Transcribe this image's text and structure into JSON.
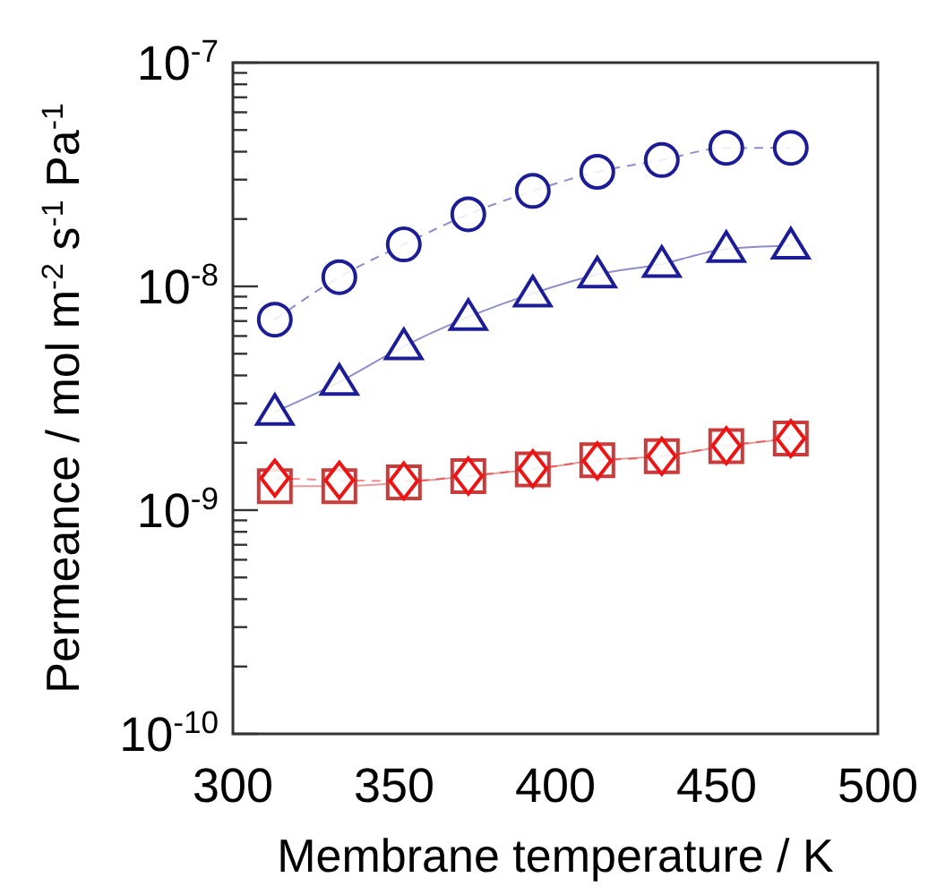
{
  "chart_data": {
    "type": "line",
    "xlabel": "Membrane temperature / K",
    "ylabel": "Permeance / mol m$^{-2}$ s$^{-1}$ Pa$^{-1}$",
    "log": "y",
    "grid": false,
    "x": [
      313,
      333,
      353,
      373,
      393,
      413,
      433,
      453,
      473
    ],
    "xlim": [
      300,
      500
    ],
    "xticks": [
      300,
      350,
      400,
      450,
      500
    ],
    "ylim": [
      1e-10,
      1e-07
    ],
    "yticks": [
      {
        "value": 1e-10,
        "label": "10$^{-10}$"
      },
      {
        "value": 2e-10,
        "label": null
      },
      {
        "value": 3e-10,
        "label": null
      },
      {
        "value": 4e-10,
        "label": null
      },
      {
        "value": 5e-10,
        "label": null
      },
      {
        "value": 6e-10,
        "label": null
      },
      {
        "value": 7e-10,
        "label": null
      },
      {
        "value": 8e-10,
        "label": null
      },
      {
        "value": 9e-10,
        "label": null
      },
      {
        "value": 1e-09,
        "label": "10$^{-9}$"
      },
      {
        "value": 2e-09,
        "label": null
      },
      {
        "value": 3e-09,
        "label": null
      },
      {
        "value": 4e-09,
        "label": null
      },
      {
        "value": 5e-09,
        "label": null
      },
      {
        "value": 6e-09,
        "label": null
      },
      {
        "value": 7e-09,
        "label": null
      },
      {
        "value": 8e-09,
        "label": null
      },
      {
        "value": 9e-09,
        "label": null
      },
      {
        "value": 1e-08,
        "label": "10$^{-8}$"
      },
      {
        "value": 2e-08,
        "label": null
      },
      {
        "value": 3e-08,
        "label": null
      },
      {
        "value": 4e-08,
        "label": null
      },
      {
        "value": 5e-08,
        "label": null
      },
      {
        "value": 6e-08,
        "label": null
      },
      {
        "value": 7e-08,
        "label": null
      },
      {
        "value": 8e-08,
        "label": null
      },
      {
        "value": 9e-08,
        "label": null
      },
      {
        "value": 1e-07,
        "label": "10$^{-7}$"
      }
    ],
    "series": [
      {
        "color": "#1c1c96",
        "marker": "circle",
        "line_style": "dashed",
        "values": [
          7.1e-09,
          1.1e-08,
          1.54e-08,
          2.1e-08,
          2.67e-08,
          3.25e-08,
          3.67e-08,
          4.16e-08,
          4.16e-08
        ]
      },
      {
        "color": "#1c1c96",
        "marker": "triangle",
        "line_style": "solid",
        "values": [
          2.75e-09,
          3.74e-09,
          5.4e-09,
          7.3e-09,
          9.3e-09,
          1.13e-08,
          1.26e-08,
          1.47e-08,
          1.52e-08
        ]
      },
      {
        "color": "#c83c3c",
        "marker": "square",
        "line_style": "solid",
        "values": [
          1.28e-09,
          1.28e-09,
          1.33e-09,
          1.42e-09,
          1.52e-09,
          1.67e-09,
          1.74e-09,
          1.93e-09,
          2.09e-09
        ]
      },
      {
        "color": "#ee1414",
        "marker": "diamond",
        "line_style": "dashed",
        "values": [
          1.39e-09,
          1.36e-09,
          1.35e-09,
          1.42e-09,
          1.53e-09,
          1.66e-09,
          1.74e-09,
          1.94e-09,
          2.09e-09
        ]
      }
    ]
  }
}
